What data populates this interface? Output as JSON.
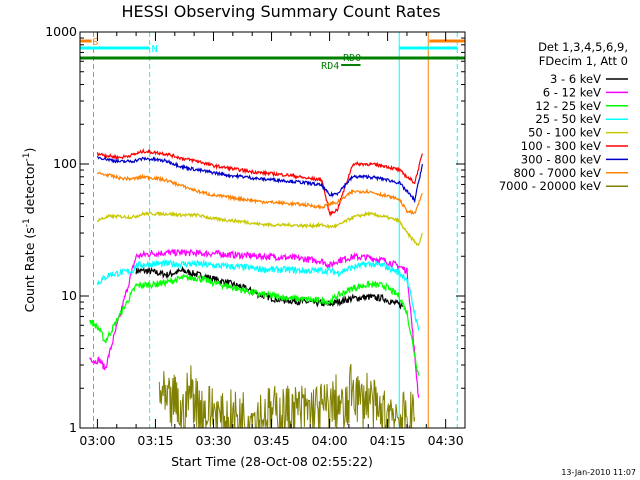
{
  "chart_data": {
    "type": "line",
    "title": "HESSI Observing Summary Count Rates",
    "xlabel": "Start Time (28-Oct-08 02:55:22)",
    "ylabel_main": "Count Rate (s",
    "ylabel_sup1": "-1",
    "ylabel_mid": " detector",
    "ylabel_sup2": "-1",
    "ylabel_end": ")",
    "y_scale": "log",
    "ylim": [
      1,
      1000
    ],
    "xlim_minutes": [
      -4.5,
      95
    ],
    "x_ticks": [
      {
        "m": 0,
        "label": "03:00"
      },
      {
        "m": 15,
        "label": "03:15"
      },
      {
        "m": 30,
        "label": "03:30"
      },
      {
        "m": 45,
        "label": "03:45"
      },
      {
        "m": 60,
        "label": "04:00"
      },
      {
        "m": 75,
        "label": "04:15"
      },
      {
        "m": 90,
        "label": "04:30"
      }
    ],
    "y_ticks": [
      {
        "v": 1,
        "label": "1"
      },
      {
        "v": 10,
        "label": "10"
      },
      {
        "v": 100,
        "label": "100"
      },
      {
        "v": 1000,
        "label": "1000"
      }
    ],
    "legend_header": [
      "Det 1,3,4,5,6,9,",
      "FDecim 1, Att 0"
    ],
    "legend_position": "right",
    "footer": "13-Jan-2010 11:07",
    "flags": [
      {
        "label": "S",
        "color": "#ff8000"
      },
      {
        "label": "N",
        "color": "#00ffff"
      },
      {
        "label": "RD0",
        "color": "#008000"
      },
      {
        "label": "RD4",
        "color": "#008000"
      }
    ],
    "vertical_markers_minutes": [
      {
        "m": -4.5,
        "color": "#00ffff",
        "style": "solid"
      },
      {
        "m": -1,
        "color": "#ff8000",
        "style": "dashed"
      },
      {
        "m": 13.5,
        "color": "#00ffff",
        "style": "dashed"
      },
      {
        "m": 78,
        "color": "#00ffff",
        "style": "solid"
      },
      {
        "m": 85.5,
        "color": "#ff8000",
        "style": "solid"
      },
      {
        "m": 93,
        "color": "#00ffff",
        "style": "dashed"
      }
    ],
    "series": [
      {
        "name": "3 - 6 keV",
        "color": "#000000",
        "x": [
          10,
          12,
          14,
          18,
          22,
          26,
          30,
          34,
          38,
          42,
          46,
          50,
          54,
          58,
          60,
          62,
          66,
          70,
          74,
          76,
          79
        ],
        "y": [
          15.5,
          15.5,
          15.3,
          14.5,
          15.5,
          14.5,
          13.5,
          12.5,
          11.5,
          10.2,
          9.5,
          9.2,
          9,
          8.8,
          8.6,
          9,
          9.6,
          9.8,
          9.6,
          9,
          8.4
        ]
      },
      {
        "name": "6 - 12 keV",
        "color": "#ff00ff",
        "x": [
          -2,
          -0.5,
          0.5,
          2,
          10,
          14,
          18,
          22,
          26,
          30,
          34,
          38,
          42,
          46,
          50,
          54,
          58,
          60,
          62,
          66,
          70,
          74,
          78,
          80,
          83
        ],
        "y": [
          3.4,
          3.2,
          3.3,
          2.8,
          20,
          21,
          21.3,
          21.3,
          21,
          21,
          20.6,
          20.3,
          20,
          19.8,
          19.5,
          19,
          18.4,
          17,
          18.5,
          19.8,
          19.6,
          18.6,
          16.8,
          15.5,
          1.7
        ]
      },
      {
        "name": "12 - 25 keV",
        "color": "#00ff00",
        "x": [
          -2,
          -0.5,
          0.5,
          2,
          10,
          14,
          18,
          22,
          26,
          30,
          34,
          38,
          42,
          46,
          50,
          54,
          58,
          60,
          62,
          66,
          70,
          74,
          78,
          80,
          83
        ],
        "y": [
          6.5,
          6,
          5.6,
          4.5,
          12,
          12.2,
          12.7,
          13.7,
          13.7,
          12.6,
          11.8,
          11,
          10.3,
          10,
          9.6,
          9.4,
          9.2,
          9,
          10,
          11.5,
          12.2,
          12,
          10,
          7.5,
          2.5
        ]
      },
      {
        "name": "25 - 50 keV",
        "color": "#00ffff",
        "x": [
          0,
          3,
          6,
          9,
          10,
          14,
          18,
          22,
          26,
          30,
          34,
          38,
          42,
          46,
          50,
          54,
          58,
          60,
          62,
          66,
          70,
          74,
          78,
          80,
          83
        ],
        "y": [
          12.5,
          14.5,
          15,
          15.5,
          17,
          17.5,
          17.5,
          17.5,
          17.5,
          17,
          16.8,
          16.5,
          16,
          15.8,
          15.8,
          15.5,
          15.6,
          15.5,
          15,
          16.5,
          17.5,
          17,
          15,
          13.5,
          5.5
        ]
      },
      {
        "name": "50 - 100 keV",
        "color": "#c8c800",
        "x": [
          0,
          3,
          6,
          9,
          12,
          15,
          18,
          22,
          26,
          30,
          34,
          38,
          42,
          46,
          50,
          54,
          58,
          60,
          62,
          66,
          70,
          74,
          78,
          80,
          83,
          84
        ],
        "y": [
          37.5,
          40,
          40,
          39.5,
          42,
          42,
          42,
          41,
          41,
          38.5,
          37.5,
          36.5,
          35,
          34.5,
          34.5,
          34,
          34.5,
          33.5,
          34,
          39.5,
          42,
          40,
          37,
          30,
          24,
          30
        ]
      },
      {
        "name": "100 - 300 keV",
        "color": "#ff0000",
        "x": [
          0,
          3,
          6,
          9,
          12,
          15,
          18,
          22,
          26,
          30,
          34,
          38,
          42,
          46,
          50,
          54,
          58,
          60,
          62,
          66,
          70,
          74,
          78,
          80,
          82,
          84
        ],
        "y": [
          120,
          115,
          112,
          117,
          125,
          122,
          119,
          110,
          105,
          97,
          93,
          89,
          86,
          84,
          82,
          78,
          76,
          42,
          45,
          100,
          100,
          97,
          90,
          80,
          72,
          120
        ]
      },
      {
        "name": "300 - 800 keV",
        "color": "#0000c8",
        "x": [
          0,
          3,
          6,
          9,
          12,
          15,
          18,
          22,
          26,
          30,
          34,
          38,
          42,
          46,
          50,
          54,
          58,
          60,
          62,
          66,
          70,
          74,
          78,
          80,
          82,
          84
        ],
        "y": [
          113,
          108,
          104,
          105,
          110,
          108,
          105,
          95,
          90,
          86,
          82,
          80,
          77,
          76,
          74,
          72,
          69,
          58,
          60,
          80,
          80,
          77,
          72,
          62,
          53,
          100
        ]
      },
      {
        "name": "800 - 7000 keV",
        "color": "#ff8000",
        "x": [
          0,
          3,
          6,
          9,
          12,
          15,
          18,
          22,
          26,
          30,
          34,
          38,
          42,
          46,
          50,
          54,
          58,
          60,
          62,
          66,
          70,
          74,
          78,
          80,
          82,
          84
        ],
        "y": [
          85,
          82,
          78,
          77,
          80,
          78,
          75,
          68,
          62,
          58,
          56,
          54,
          52,
          51,
          50,
          49,
          47,
          50,
          51,
          62,
          62,
          58,
          54,
          44,
          42,
          60
        ]
      },
      {
        "name": "7000 - 20000 keV",
        "color": "#808000",
        "x": [
          16,
          18,
          20,
          22,
          24,
          26,
          28,
          30,
          32,
          35,
          60,
          62,
          64,
          66,
          68,
          70,
          72,
          74,
          76,
          78,
          80,
          82
        ],
        "y": [
          2,
          1.4,
          1.6,
          1.2,
          2,
          1.5,
          1.3,
          1.4,
          1.1,
          1.2,
          1.4,
          1.6,
          1.2,
          2.2,
          1.5,
          1.8,
          1.3,
          1.2,
          1.4,
          1.2,
          1.1,
          1.2
        ]
      }
    ]
  }
}
